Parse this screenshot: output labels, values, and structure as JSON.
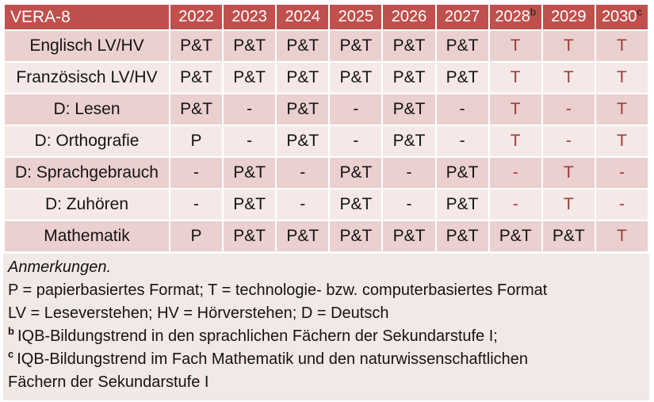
{
  "table": {
    "title": "VERA-8",
    "columns": [
      {
        "year": "2022",
        "sup": ""
      },
      {
        "year": "2023",
        "sup": ""
      },
      {
        "year": "2024",
        "sup": ""
      },
      {
        "year": "2025",
        "sup": ""
      },
      {
        "year": "2026",
        "sup": ""
      },
      {
        "year": "2027",
        "sup": ""
      },
      {
        "year": "2028",
        "sup": "b"
      },
      {
        "year": "2029",
        "sup": ""
      },
      {
        "year": "2030",
        "sup": "c"
      }
    ],
    "rows": [
      {
        "label": "Englisch LV/HV",
        "cells": [
          {
            "text": "P&T",
            "red": false
          },
          {
            "text": "P&T",
            "red": false
          },
          {
            "text": "P&T",
            "red": false
          },
          {
            "text": "P&T",
            "red": false
          },
          {
            "text": "P&T",
            "red": false
          },
          {
            "text": "P&T",
            "red": false
          },
          {
            "text": "T",
            "red": true
          },
          {
            "text": "T",
            "red": true
          },
          {
            "text": "T",
            "red": true
          }
        ]
      },
      {
        "label": "Französisch LV/HV",
        "cells": [
          {
            "text": "P&T",
            "red": false
          },
          {
            "text": "P&T",
            "red": false
          },
          {
            "text": "P&T",
            "red": false
          },
          {
            "text": "P&T",
            "red": false
          },
          {
            "text": "P&T",
            "red": false
          },
          {
            "text": "P&T",
            "red": false
          },
          {
            "text": "T",
            "red": true
          },
          {
            "text": "T",
            "red": true
          },
          {
            "text": "T",
            "red": true
          }
        ]
      },
      {
        "label": "D: Lesen",
        "cells": [
          {
            "text": "P&T",
            "red": false
          },
          {
            "text": "-",
            "red": false
          },
          {
            "text": "P&T",
            "red": false
          },
          {
            "text": "-",
            "red": false
          },
          {
            "text": "P&T",
            "red": false
          },
          {
            "text": "-",
            "red": false
          },
          {
            "text": "T",
            "red": true
          },
          {
            "text": "-",
            "red": true
          },
          {
            "text": "T",
            "red": true
          }
        ]
      },
      {
        "label": "D: Orthografie",
        "cells": [
          {
            "text": "P",
            "red": false
          },
          {
            "text": "-",
            "red": false
          },
          {
            "text": "P&T",
            "red": false
          },
          {
            "text": "-",
            "red": false
          },
          {
            "text": "P&T",
            "red": false
          },
          {
            "text": "-",
            "red": false
          },
          {
            "text": "T",
            "red": true
          },
          {
            "text": "-",
            "red": true
          },
          {
            "text": "T",
            "red": true
          }
        ]
      },
      {
        "label": "D: Sprachgebrauch",
        "cells": [
          {
            "text": "-",
            "red": false
          },
          {
            "text": "P&T",
            "red": false
          },
          {
            "text": "-",
            "red": false
          },
          {
            "text": "P&T",
            "red": false
          },
          {
            "text": "-",
            "red": false
          },
          {
            "text": "P&T",
            "red": false
          },
          {
            "text": "-",
            "red": true
          },
          {
            "text": "T",
            "red": true
          },
          {
            "text": "-",
            "red": true
          }
        ]
      },
      {
        "label": "D: Zuhören",
        "cells": [
          {
            "text": "-",
            "red": false
          },
          {
            "text": "P&T",
            "red": false
          },
          {
            "text": "-",
            "red": false
          },
          {
            "text": "P&T",
            "red": false
          },
          {
            "text": "-",
            "red": false
          },
          {
            "text": "P&T",
            "red": false
          },
          {
            "text": "-",
            "red": true
          },
          {
            "text": "T",
            "red": true
          },
          {
            "text": "-",
            "red": true
          }
        ]
      },
      {
        "label": "Mathematik",
        "cells": [
          {
            "text": "P",
            "red": false
          },
          {
            "text": "P&T",
            "red": false
          },
          {
            "text": "P&T",
            "red": false
          },
          {
            "text": "P&T",
            "red": false
          },
          {
            "text": "P&T",
            "red": false
          },
          {
            "text": "P&T",
            "red": false
          },
          {
            "text": "P&T",
            "red": false
          },
          {
            "text": "P&T",
            "red": false
          },
          {
            "text": "T",
            "red": true
          }
        ]
      }
    ]
  },
  "notes": {
    "heading": "Anmerkungen.",
    "formats": "P = papierbasiertes Format; T = technologie- bzw. computerbasiertes Format",
    "abbreviations": "LV = Leseverstehen; HV = Hörverstehen; D = Deutsch",
    "footnote_b": {
      "marker": "b",
      "text": "IQB-Bildungstrend in den sprachlichen Fächern der Sekundarstufe I;"
    },
    "footnote_c": {
      "marker": "c",
      "line1": "IQB-Bildungstrend im Fach Mathematik und den naturwissenschaftlichen",
      "line2": "Fächern der Sekundarstufe I"
    }
  },
  "colors": {
    "header_bg": "#C0504D",
    "header_text": "#FFFFFF",
    "band_dark": "#EAD0CF",
    "band_light": "#F5E9E8",
    "notes_bg": "#F2E8E5",
    "red_text": "#9E3B38",
    "body_text": "#141414",
    "page_bg": "#FFFFFF"
  }
}
